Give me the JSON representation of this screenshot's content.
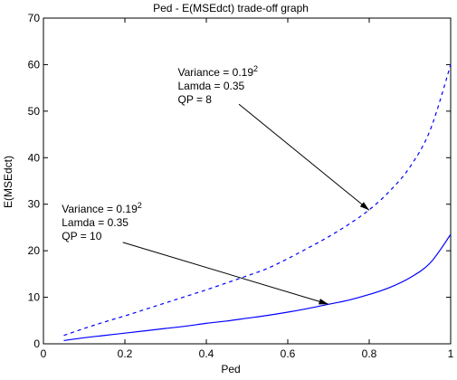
{
  "chart_data": {
    "type": "line",
    "title": "Ped - E(MSEdct) trade-off graph",
    "xlabel": "Ped",
    "ylabel": "E(MSEdct)",
    "xlim": [
      0,
      1
    ],
    "ylim": [
      0,
      70
    ],
    "x_ticks": [
      0,
      0.2,
      0.4,
      0.6,
      0.8,
      1
    ],
    "y_ticks": [
      0,
      10,
      20,
      30,
      40,
      50,
      60,
      70
    ],
    "x_tick_labels": [
      "0",
      "0.2",
      "0.4",
      "0.6",
      "0.8",
      "1"
    ],
    "y_tick_labels": [
      "0",
      "10",
      "20",
      "30",
      "40",
      "50",
      "60",
      "70"
    ],
    "grid": false,
    "line_color": "#0000ff",
    "series": [
      {
        "style": "dashed",
        "x": [
          0.05,
          0.1,
          0.15,
          0.2,
          0.25,
          0.3,
          0.35,
          0.4,
          0.45,
          0.5,
          0.55,
          0.6,
          0.65,
          0.7,
          0.75,
          0.8,
          0.85,
          0.9,
          0.95,
          1.0
        ],
        "y": [
          1.8,
          3.3,
          4.7,
          6.0,
          7.4,
          8.8,
          10.2,
          11.6,
          13.1,
          14.6,
          16.2,
          18.3,
          20.6,
          23.0,
          25.7,
          28.8,
          32.8,
          38.0,
          46.0,
          60.0
        ]
      },
      {
        "style": "solid",
        "x": [
          0.05,
          0.1,
          0.15,
          0.2,
          0.25,
          0.3,
          0.35,
          0.4,
          0.45,
          0.5,
          0.55,
          0.6,
          0.65,
          0.7,
          0.75,
          0.8,
          0.85,
          0.9,
          0.95,
          1.0
        ],
        "y": [
          0.7,
          1.3,
          1.8,
          2.3,
          2.8,
          3.3,
          3.8,
          4.4,
          4.9,
          5.5,
          6.1,
          6.8,
          7.6,
          8.5,
          9.4,
          10.6,
          12.1,
          14.2,
          17.4,
          23.5
        ]
      }
    ],
    "annotations": [
      {
        "lines": [
          {
            "text": "Variance = 0.19",
            "sup": "2"
          },
          {
            "text": "Lamda = 0.35"
          },
          {
            "text": "QP = 8"
          }
        ],
        "text_at": [
          0.33,
          57.6
        ],
        "arrow_from": [
          0.48,
          51.5
        ],
        "arrow_to": [
          0.8,
          28.7
        ]
      },
      {
        "lines": [
          {
            "text": "Variance = 0.19",
            "sup": "2"
          },
          {
            "text": "Lamda = 0.35"
          },
          {
            "text": "QP = 10"
          }
        ],
        "text_at": [
          0.045,
          28.2
        ],
        "arrow_from": [
          0.195,
          21.8
        ],
        "arrow_to": [
          0.7,
          8.5
        ]
      }
    ]
  }
}
